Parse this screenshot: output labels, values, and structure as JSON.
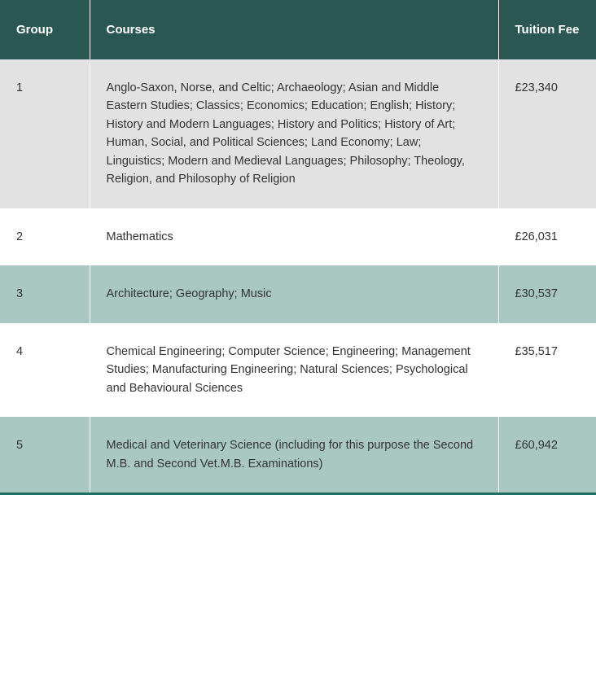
{
  "table": {
    "columns": [
      "Group",
      "Courses",
      "Tuition Fee"
    ],
    "rows": [
      {
        "group": "1",
        "courses": "Anglo-Saxon, Norse, and Celtic; Archaeology; Asian and Middle Eastern Studies; Classics; Economics; Education; English; History; History and Modern Languages; History and Politics; History of Art; Human, Social, and Political Sciences; Land Economy; Law; Linguistics; Modern and Medieval Languages; Philosophy; Theology, Religion, and Philosophy of Religion",
        "fee": "£23,340"
      },
      {
        "group": "2",
        "courses": "Mathematics",
        "fee": "£26,031"
      },
      {
        "group": "3",
        "courses": "Architecture; Geography; Music",
        "fee": "£30,537"
      },
      {
        "group": "4",
        "courses": "Chemical Engineering; Computer Science; Engineering; Management Studies; Manufacturing Engineering; Natural Sciences; Psychological and Behavioural Sciences",
        "fee": "£35,517"
      },
      {
        "group": "5",
        "courses": "Medical and Veterinary Science (including for this purpose the Second M.B. and Second Vet.M.B. Examinations)",
        "fee": "£60,942"
      }
    ],
    "header_bg": "#2b5752",
    "header_text_color": "#ffffff",
    "row_colors_odd": "#e2e2e2",
    "row_colors_alt": "#a9c8c1",
    "row_colors_even": "#ffffff",
    "bottom_border_color": "#1f6f63",
    "text_color": "#333333",
    "font_family": "Verdana",
    "font_size_body": 14.5,
    "font_size_header": 15
  }
}
